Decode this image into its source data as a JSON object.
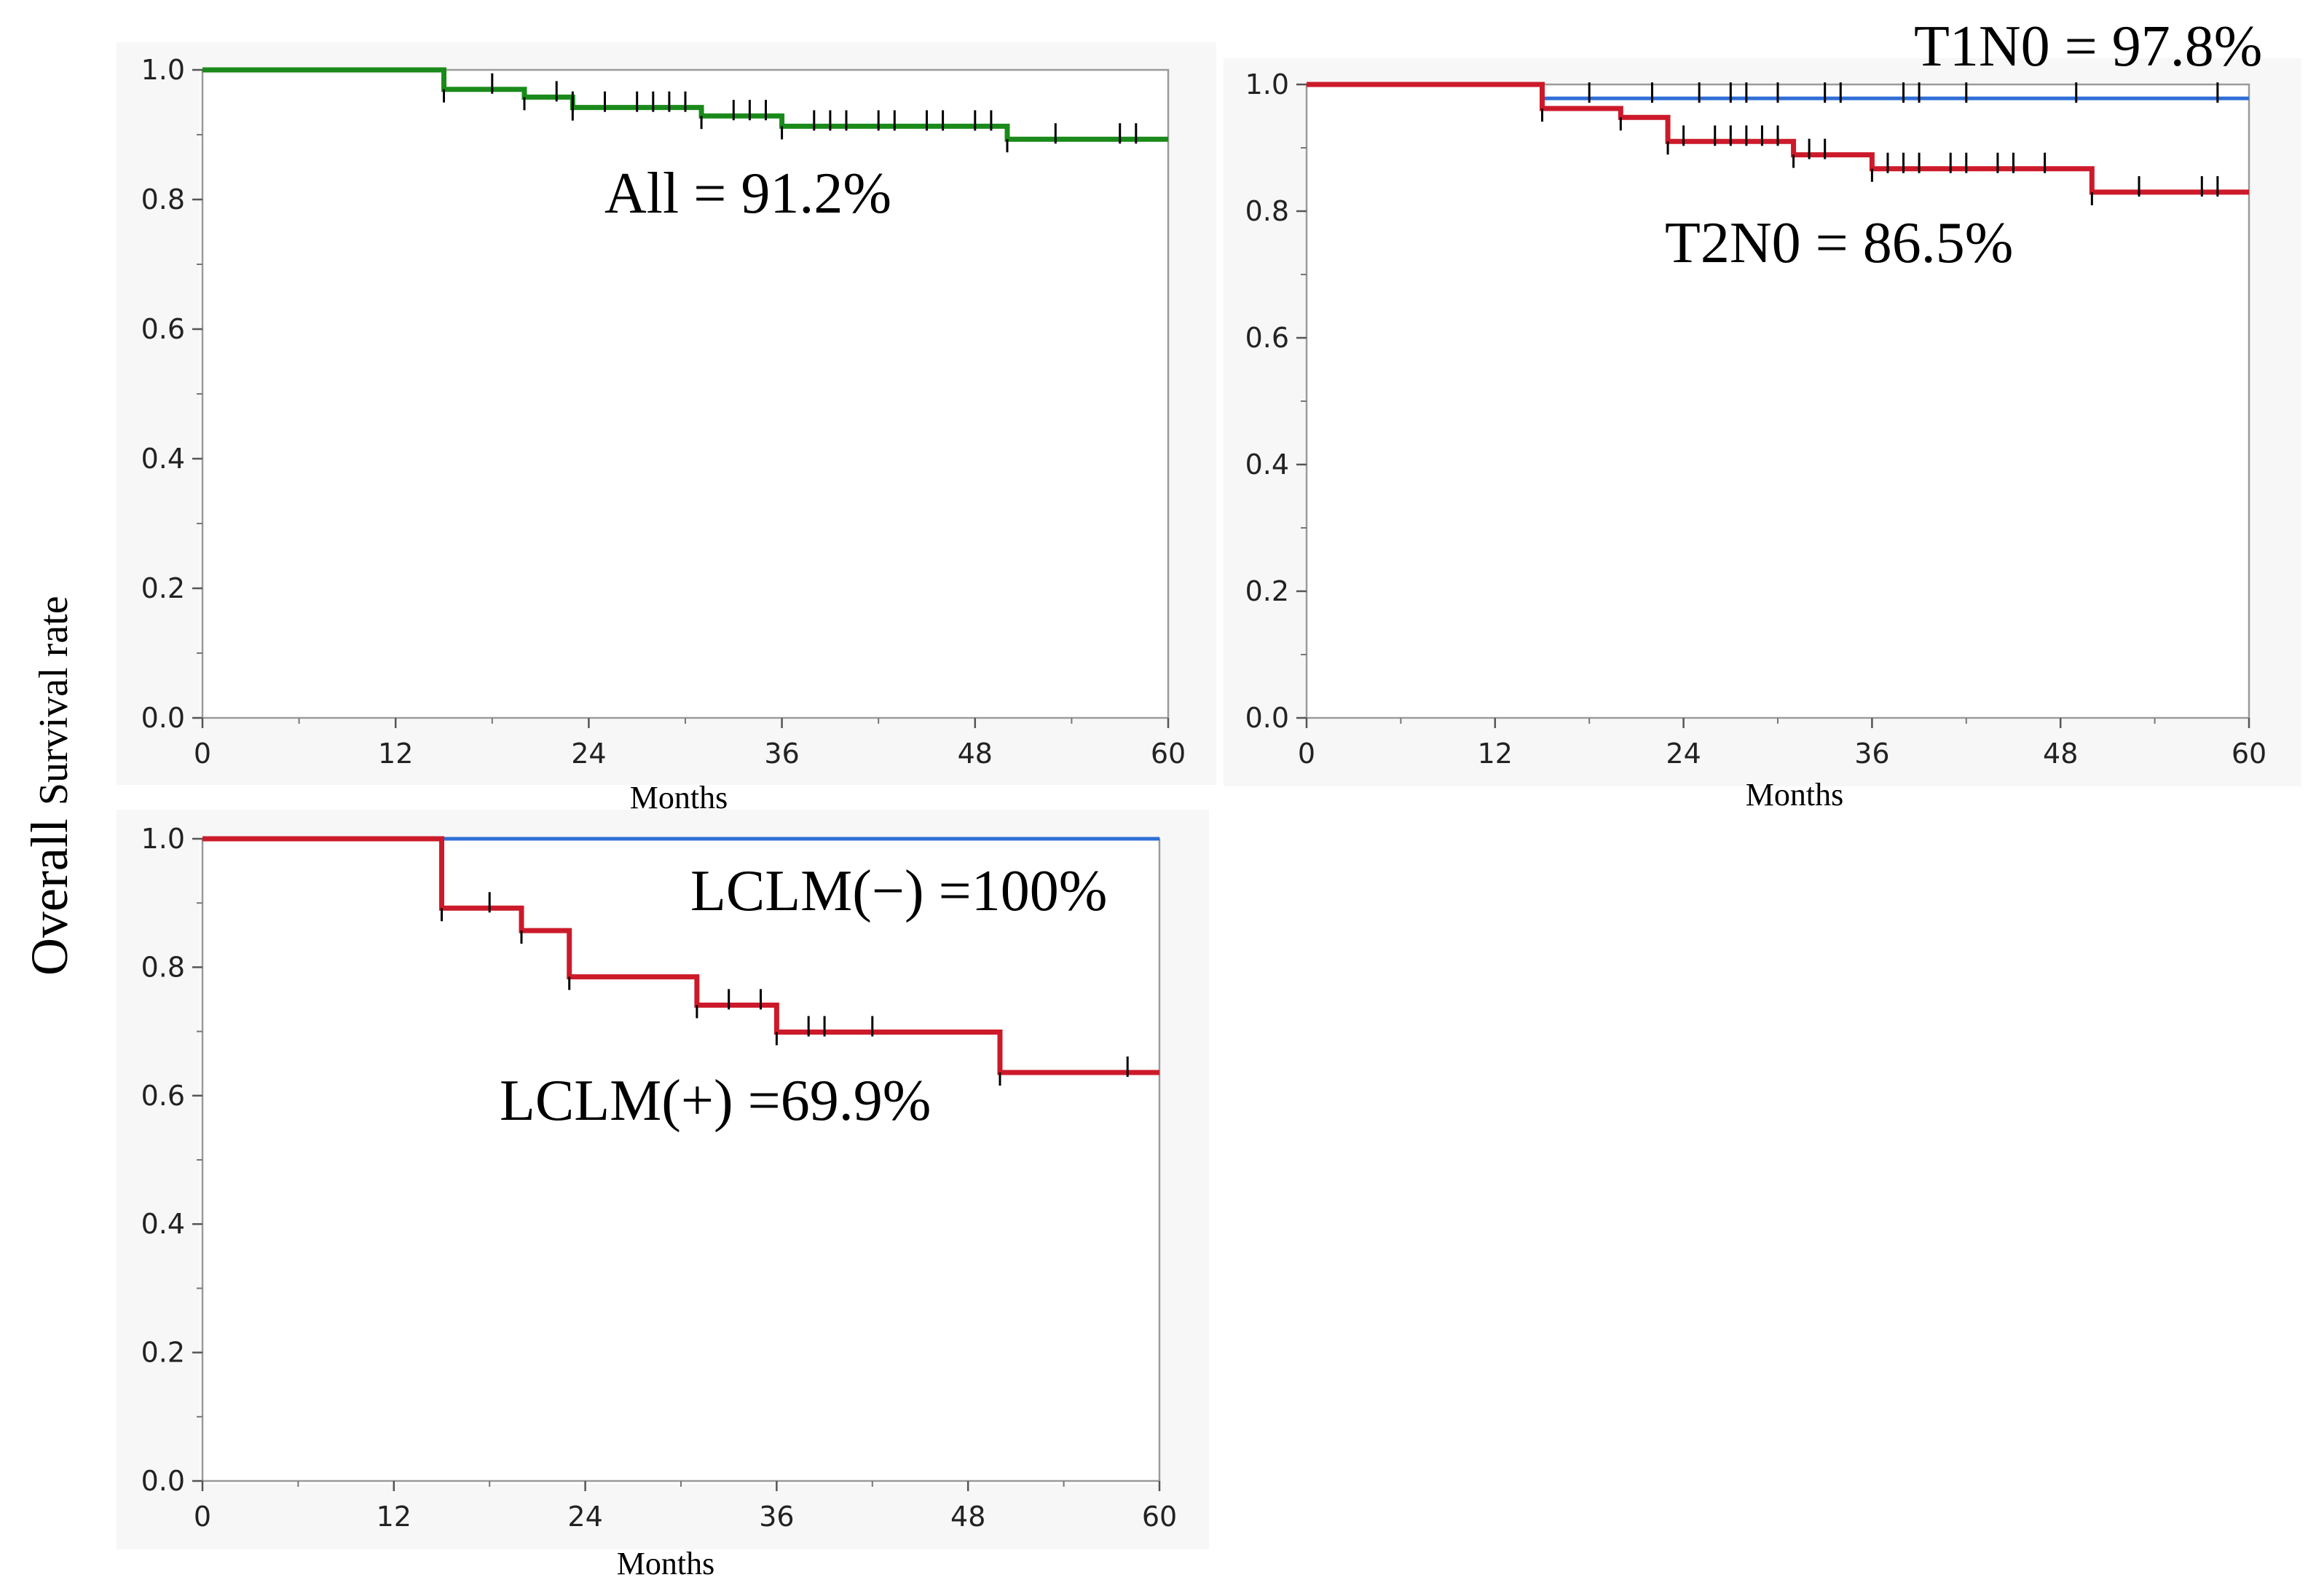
{
  "figure": {
    "ylabel_main": "Overall",
    "ylabel_sub": "Survival rate"
  },
  "chart_data": [
    {
      "id": "all",
      "type": "line",
      "title": "",
      "xlabel": "Months",
      "ylabel": "Overall Survival rate",
      "xlim": [
        0,
        60
      ],
      "ylim": [
        0,
        1.0
      ],
      "xticks": [
        0,
        12,
        24,
        36,
        48,
        60
      ],
      "xtick_labels": [
        "0",
        "12",
        "24",
        "36",
        "48",
        "60"
      ],
      "yticks": [
        0,
        0.2,
        0.4,
        0.6,
        0.8,
        1.0
      ],
      "ytick_labels": [
        "0.0",
        "0.2",
        "0.4",
        "0.6",
        "0.8",
        "1.0"
      ],
      "annotations": [
        {
          "text": "All = 91.2%"
        }
      ],
      "series": [
        {
          "name": "All",
          "color": "#1a8a1a",
          "steps": [
            [
              0,
              1.0
            ],
            [
              15,
              0.97
            ],
            [
              20,
              0.958
            ],
            [
              23,
              0.942
            ],
            [
              31,
              0.929
            ],
            [
              36,
              0.913
            ],
            [
              50,
              0.893
            ],
            [
              60,
              0.893
            ]
          ],
          "censors": [
            18,
            22,
            23,
            25,
            27,
            28,
            29,
            30,
            33,
            34,
            35,
            38,
            39,
            40,
            42,
            43,
            45,
            46,
            48,
            49,
            53,
            57,
            58
          ]
        }
      ]
    },
    {
      "id": "tn",
      "type": "line",
      "title": "",
      "xlabel": "Months",
      "ylabel": "Overall Survival rate",
      "xlim": [
        0,
        60
      ],
      "ylim": [
        0,
        1.0
      ],
      "xticks": [
        0,
        12,
        24,
        36,
        48,
        60
      ],
      "xtick_labels": [
        "0",
        "12",
        "24",
        "36",
        "48",
        "60"
      ],
      "yticks": [
        0,
        0.2,
        0.4,
        0.6,
        0.8,
        1.0
      ],
      "ytick_labels": [
        "0.0",
        "0.2",
        "0.4",
        "0.6",
        "0.8",
        "1.0"
      ],
      "annotations": [
        {
          "text": "T1N0 = 97.8%"
        },
        {
          "text": "T2N0 = 86.5%"
        }
      ],
      "series": [
        {
          "name": "T1N0",
          "color": "#2f6fd6",
          "steps": [
            [
              0,
              1.0
            ],
            [
              15,
              0.978
            ],
            [
              60,
              0.978
            ]
          ],
          "censors": [
            18,
            22,
            25,
            27,
            28,
            30,
            33,
            34,
            38,
            39,
            42,
            49,
            58
          ]
        },
        {
          "name": "T2N0",
          "color": "#cc1a2a",
          "steps": [
            [
              0,
              1.0
            ],
            [
              15,
              0.962
            ],
            [
              20,
              0.948
            ],
            [
              23,
              0.91
            ],
            [
              31,
              0.889
            ],
            [
              36,
              0.867
            ],
            [
              50,
              0.83
            ],
            [
              60,
              0.83
            ]
          ],
          "censors": [
            24,
            26,
            27,
            28,
            29,
            30,
            32,
            33,
            37,
            38,
            39,
            41,
            42,
            44,
            45,
            47,
            53,
            57,
            58
          ]
        }
      ]
    },
    {
      "id": "lclm",
      "type": "line",
      "title": "",
      "xlabel": "Months",
      "ylabel": "Overall Survival rate",
      "xlim": [
        0,
        60
      ],
      "ylim": [
        0,
        1.0
      ],
      "xticks": [
        0,
        12,
        24,
        36,
        48,
        60
      ],
      "xtick_labels": [
        "0",
        "12",
        "24",
        "36",
        "48",
        "60"
      ],
      "yticks": [
        0,
        0.2,
        0.4,
        0.6,
        0.8,
        1.0
      ],
      "ytick_labels": [
        "0.0",
        "0.2",
        "0.4",
        "0.6",
        "0.8",
        "1.0"
      ],
      "annotations": [
        {
          "text": "LCLM(−) =100%"
        },
        {
          "text": "LCLM(+) =69.9%"
        }
      ],
      "series": [
        {
          "name": "LCLM(−)",
          "color": "#2f6fd6",
          "steps": [
            [
              0,
              1.0
            ],
            [
              60,
              1.0
            ]
          ],
          "censors": []
        },
        {
          "name": "LCLM(+)",
          "color": "#cc1a2a",
          "steps": [
            [
              0,
              1.0
            ],
            [
              15,
              0.892
            ],
            [
              20,
              0.857
            ],
            [
              23,
              0.785
            ],
            [
              31,
              0.741
            ],
            [
              36,
              0.699
            ],
            [
              50,
              0.636
            ],
            [
              60,
              0.636
            ]
          ],
          "censors": [
            18,
            33,
            35,
            38,
            39,
            42,
            58
          ]
        }
      ]
    }
  ]
}
